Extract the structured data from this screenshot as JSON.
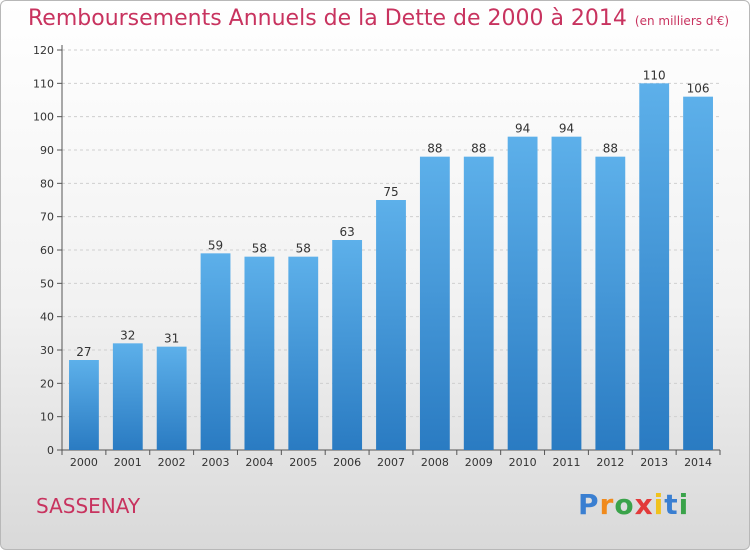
{
  "title": "Remboursements Annuels de la Dette de 2000 à 2014",
  "unit": "(en milliers d'€)",
  "place": "SASSENAY",
  "logo": {
    "letters": [
      "P",
      "r",
      "o",
      "x",
      "i",
      "t",
      "i"
    ],
    "colors": [
      "#3a7fd1",
      "#f08a1c",
      "#3aa34a",
      "#e23a3a",
      "#f0c21c",
      "#3a7fd1",
      "#3aa34a"
    ]
  },
  "colors": {
    "bar": "#4aa0e0",
    "bar_dark": "#2c7bc0",
    "text_accent": "#c8335f"
  },
  "chart_data": {
    "type": "bar",
    "title": "Remboursements Annuels de la Dette de 2000 à 2014",
    "categories": [
      "2000",
      "2001",
      "2002",
      "2003",
      "2004",
      "2005",
      "2006",
      "2007",
      "2008",
      "2009",
      "2010",
      "2011",
      "2012",
      "2013",
      "2014"
    ],
    "values": [
      27,
      32,
      31,
      59,
      58,
      58,
      63,
      75,
      88,
      88,
      94,
      94,
      88,
      110,
      106
    ],
    "ylim": [
      0,
      120
    ],
    "yticks": [
      0,
      10,
      20,
      30,
      40,
      50,
      60,
      70,
      80,
      90,
      100,
      110,
      120
    ],
    "grid": true
  }
}
